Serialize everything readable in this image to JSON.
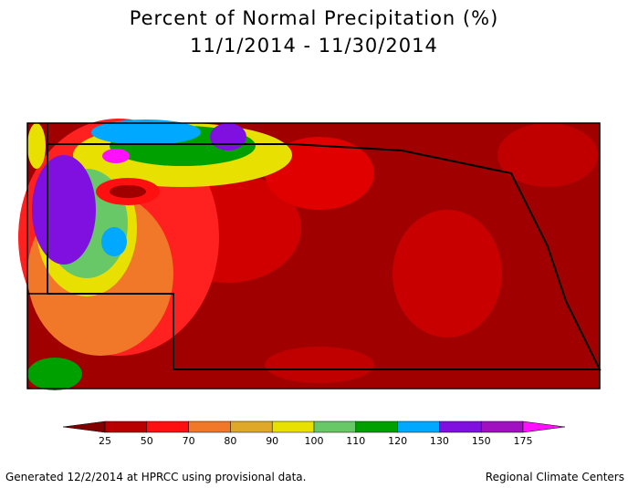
{
  "title": [
    "Percent of Normal Precipitation (%)",
    "11/1/2014 - 11/30/2014"
  ],
  "legend": {
    "ticks": [
      "25",
      "50",
      "70",
      "80",
      "90",
      "100",
      "110",
      "120",
      "130",
      "150",
      "175"
    ],
    "colors": [
      "#800000",
      "#b80000",
      "#ff1010",
      "#f07828",
      "#e0a828",
      "#e8e000",
      "#68c868",
      "#00a000",
      "#00a8ff",
      "#8010e0",
      "#a010c0",
      "#ff10ff"
    ]
  },
  "footer": {
    "left": "Generated 12/2/2014 at HPRCC using provisional data.",
    "right": "Regional Climate Centers"
  }
}
